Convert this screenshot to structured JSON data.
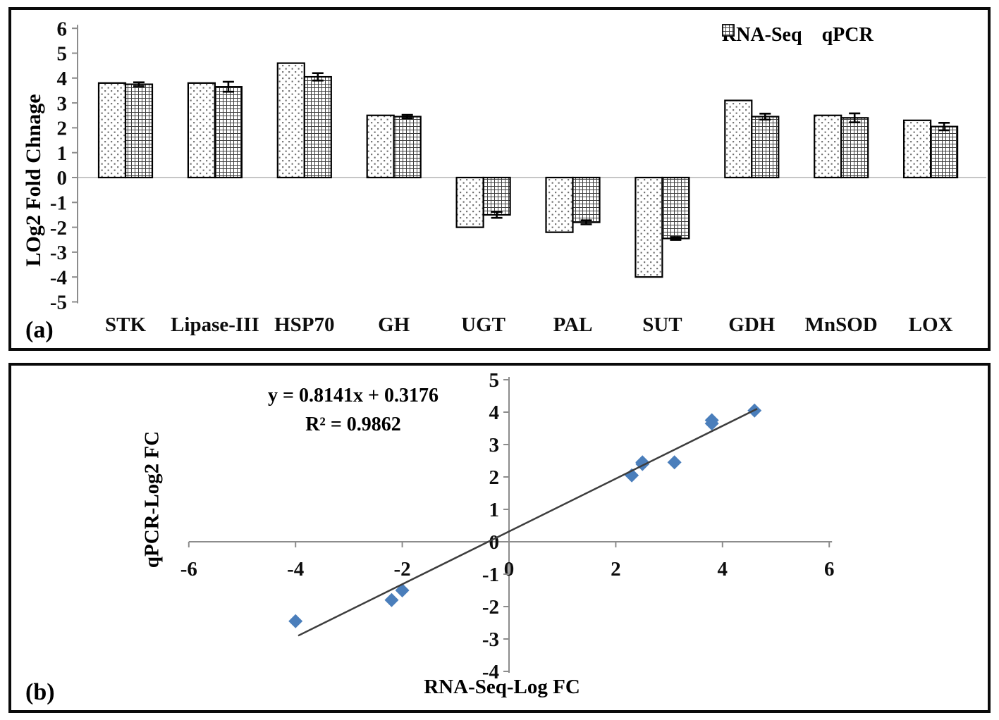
{
  "figure": {
    "panel_a_label": "(a)",
    "panel_b_label": "(b)"
  },
  "colors": {
    "bar_outline": "#000000",
    "axis_gray": "#8c8c8c",
    "zero_line_gray": "#b3b3b3",
    "marker_blue": "#4a7ebb",
    "trend_line": "#3d3d3d",
    "pattern_dot": "#6a6a6a",
    "pattern_grid": "#3f3f3f"
  },
  "chart_data": [
    {
      "id": "a",
      "type": "bar",
      "ylabel": "LOg2 Fold Chnage",
      "ylim": [
        -5,
        6
      ],
      "yticks": [
        6,
        5,
        4,
        3,
        2,
        1,
        0,
        -1,
        -2,
        -3,
        -4,
        -5
      ],
      "grid": false,
      "legend_position": "top-right",
      "categories": [
        "STK",
        "Lipase-III",
        "HSP70",
        "GH",
        "UGT",
        "PAL",
        "SUT",
        "GDH",
        "MnSOD",
        "LOX"
      ],
      "series": [
        {
          "name": "RNA-Seq",
          "pattern": "dots",
          "values": [
            3.8,
            3.8,
            4.6,
            2.5,
            -2.0,
            -2.2,
            -4.0,
            3.1,
            2.5,
            2.3
          ]
        },
        {
          "name": "qPCR",
          "pattern": "grid",
          "values": [
            3.75,
            3.65,
            4.05,
            2.45,
            -1.5,
            -1.8,
            -2.45,
            2.45,
            2.4,
            2.05
          ],
          "errors": [
            0.08,
            0.2,
            0.15,
            0.07,
            0.12,
            0.08,
            0.06,
            0.12,
            0.18,
            0.15
          ]
        }
      ]
    },
    {
      "id": "b",
      "type": "scatter",
      "xlabel": "RNA-Seq-Log FC",
      "ylabel": "qPCR-Log2 FC",
      "xlim": [
        -6,
        6
      ],
      "ylim": [
        -4,
        5
      ],
      "xticks": [
        -6,
        -4,
        -2,
        0,
        2,
        4,
        6
      ],
      "yticks": [
        5,
        4,
        3,
        2,
        1,
        0,
        -1,
        -2,
        -3,
        -4
      ],
      "equation": "y = 0.8141x + 0.3176",
      "r_squared": "R² = 0.9862",
      "marker": "diamond",
      "marker_color": "#4a7ebb",
      "line_color": "#3d3d3d",
      "points": [
        [
          3.8,
          3.75
        ],
        [
          3.8,
          3.65
        ],
        [
          4.6,
          4.05
        ],
        [
          2.5,
          2.45
        ],
        [
          2.5,
          2.4
        ],
        [
          2.3,
          2.05
        ],
        [
          3.1,
          2.45
        ],
        [
          -2.0,
          -1.5
        ],
        [
          -2.2,
          -1.8
        ],
        [
          -4.0,
          -2.45
        ]
      ],
      "trendline": {
        "slope": 0.8141,
        "intercept": 0.3176,
        "x_start": -3.95,
        "x_end": 4.65
      }
    }
  ]
}
